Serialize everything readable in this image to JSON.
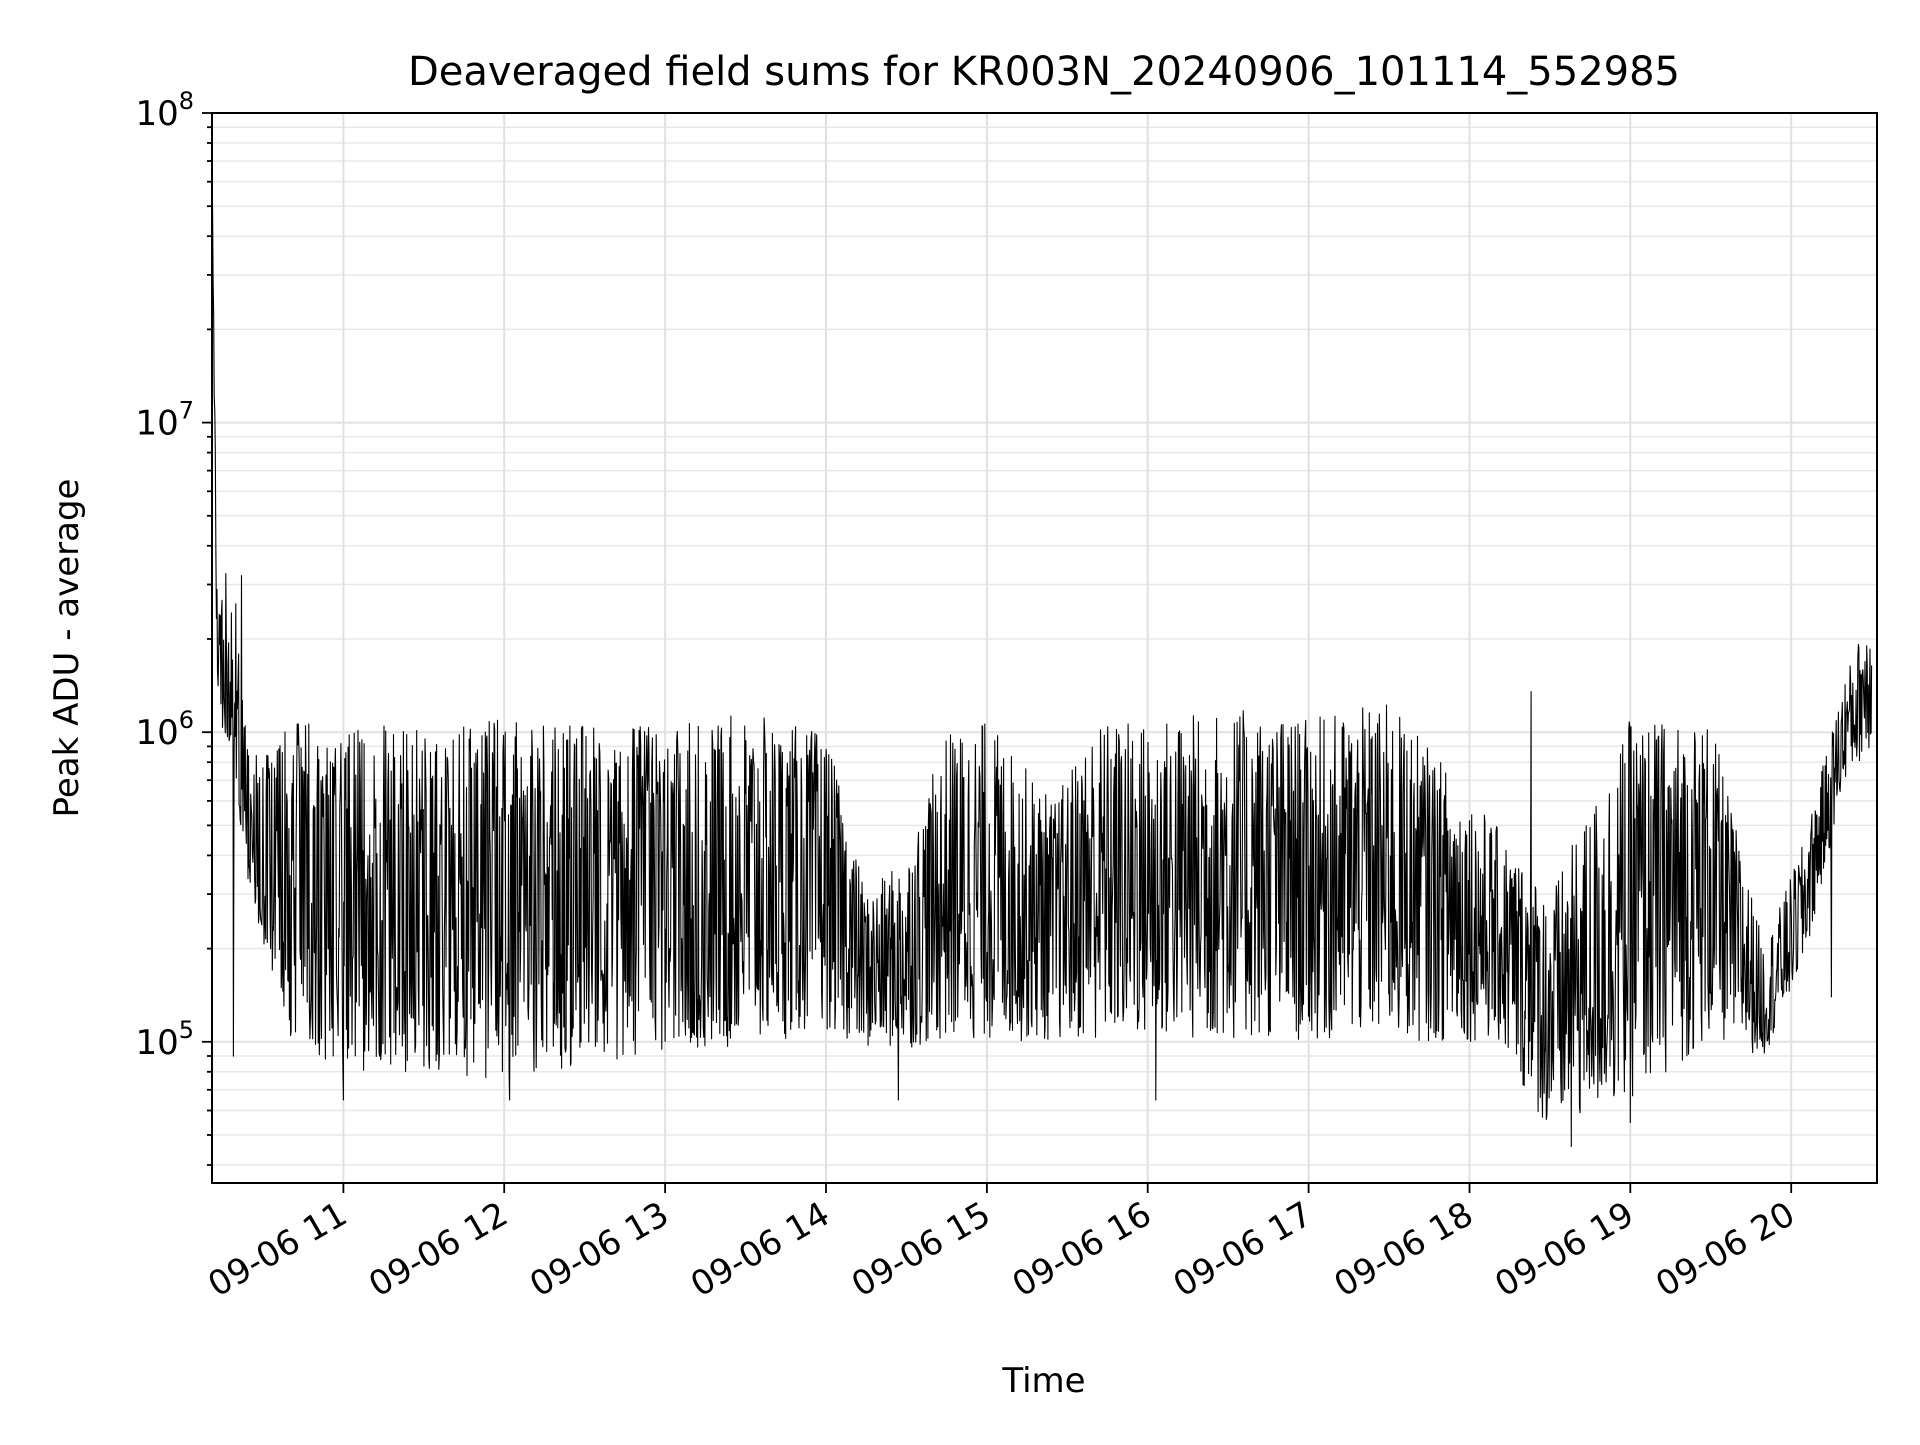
{
  "chart_data": {
    "type": "line",
    "title": "Deaveraged field sums for KR003N_20240906_101114_552985",
    "xlabel": "Time",
    "ylabel": "Peak ADU - average",
    "x_axis": {
      "kind": "datetime",
      "range": [
        "2024-09-06T10:11:00",
        "2024-09-06T20:32:00"
      ],
      "tick_values": [
        "2024-09-06T11:00",
        "2024-09-06T12:00",
        "2024-09-06T13:00",
        "2024-09-06T14:00",
        "2024-09-06T15:00",
        "2024-09-06T16:00",
        "2024-09-06T17:00",
        "2024-09-06T18:00",
        "2024-09-06T19:00",
        "2024-09-06T20:00"
      ],
      "tick_labels": [
        "09-06 11",
        "09-06 12",
        "09-06 13",
        "09-06 14",
        "09-06 15",
        "09-06 16",
        "09-06 17",
        "09-06 18",
        "09-06 19",
        "09-06 20"
      ],
      "tick_rotation_deg": 30
    },
    "y_axis": {
      "scale": "log",
      "range": [
        35000,
        100000000
      ],
      "major_ticks": [
        {
          "value": 100000,
          "base": "10",
          "exp": "5"
        },
        {
          "value": 1000000,
          "base": "10",
          "exp": "6"
        },
        {
          "value": 10000000,
          "base": "10",
          "exp": "7"
        },
        {
          "value": 100000000,
          "base": "10",
          "exp": "8"
        }
      ]
    },
    "grid": true,
    "legend": "none",
    "line_color": "#000000",
    "series": [
      {
        "note_envelope": [
          {
            "time": "2024-09-06T10:11",
            "low": 60000000,
            "high": 70000000
          },
          {
            "time": "2024-09-06T10:13",
            "low": 1100000,
            "high": 2400000
          },
          {
            "time": "2024-09-06T10:18",
            "low": 900000,
            "high": 4100000
          },
          {
            "time": "2024-09-06T10:25",
            "low": 300000,
            "high": 800000
          },
          {
            "time": "2024-09-06T10:40",
            "low": 100000,
            "high": 1100000
          },
          {
            "time": "2024-09-06T11:00",
            "low": 80000,
            "high": 1100000
          },
          {
            "time": "2024-09-06T11:30",
            "low": 80000,
            "high": 1050000
          },
          {
            "time": "2024-09-06T12:00",
            "low": 75000,
            "high": 1100000
          },
          {
            "time": "2024-09-06T12:30",
            "low": 85000,
            "high": 1050000
          },
          {
            "time": "2024-09-06T13:00",
            "low": 85000,
            "high": 1050000
          },
          {
            "time": "2024-09-06T13:30",
            "low": 95000,
            "high": 1150000
          },
          {
            "time": "2024-09-06T14:00",
            "low": 110000,
            "high": 1000000
          },
          {
            "time": "2024-09-06T14:15",
            "low": 95000,
            "high": 300000
          },
          {
            "time": "2024-09-06T14:30",
            "low": 95000,
            "high": 400000
          },
          {
            "time": "2024-09-06T14:45",
            "low": 100000,
            "high": 1000000
          },
          {
            "time": "2024-09-06T15:00",
            "low": 100000,
            "high": 1100000
          },
          {
            "time": "2024-09-06T15:25",
            "low": 100000,
            "high": 600000
          },
          {
            "time": "2024-09-06T15:40",
            "low": 100000,
            "high": 1100000
          },
          {
            "time": "2024-09-06T16:00",
            "low": 100000,
            "high": 1100000
          },
          {
            "time": "2024-09-06T16:30",
            "low": 100000,
            "high": 1200000
          },
          {
            "time": "2024-09-06T17:00",
            "low": 100000,
            "high": 1100000
          },
          {
            "time": "2024-09-06T17:30",
            "low": 100000,
            "high": 1250000
          },
          {
            "time": "2024-09-06T17:50",
            "low": 100000,
            "high": 800000
          },
          {
            "time": "2024-09-06T18:10",
            "low": 100000,
            "high": 500000
          },
          {
            "time": "2024-09-06T18:30",
            "low": 50000,
            "high": 300000
          },
          {
            "time": "2024-09-06T19:00",
            "low": 65000,
            "high": 1100000
          },
          {
            "time": "2024-09-06T19:30",
            "low": 100000,
            "high": 1100000
          },
          {
            "time": "2024-09-06T19:50",
            "low": 90000,
            "high": 200000
          },
          {
            "time": "2024-09-06T20:05",
            "low": 180000,
            "high": 450000
          },
          {
            "time": "2024-09-06T20:20",
            "low": 700000,
            "high": 1500000
          },
          {
            "time": "2024-09-06T20:30",
            "low": 900000,
            "high": 2600000
          }
        ],
        "spikes": [
          {
            "time": "2024-09-06T10:19",
            "value": 90000
          },
          {
            "time": "2024-09-06T10:22",
            "value": 3200000
          },
          {
            "time": "2024-09-06T11:00",
            "value": 65000
          },
          {
            "time": "2024-09-06T12:02",
            "value": 65000
          },
          {
            "time": "2024-09-06T14:27",
            "value": 65000
          },
          {
            "time": "2024-09-06T16:03",
            "value": 65000
          },
          {
            "time": "2024-09-06T18:23",
            "value": 1350000
          },
          {
            "time": "2024-09-06T18:38",
            "value": 46000
          },
          {
            "time": "2024-09-06T19:00",
            "value": 55000
          },
          {
            "time": "2024-09-06T20:15",
            "value": 140000
          }
        ]
      }
    ]
  }
}
